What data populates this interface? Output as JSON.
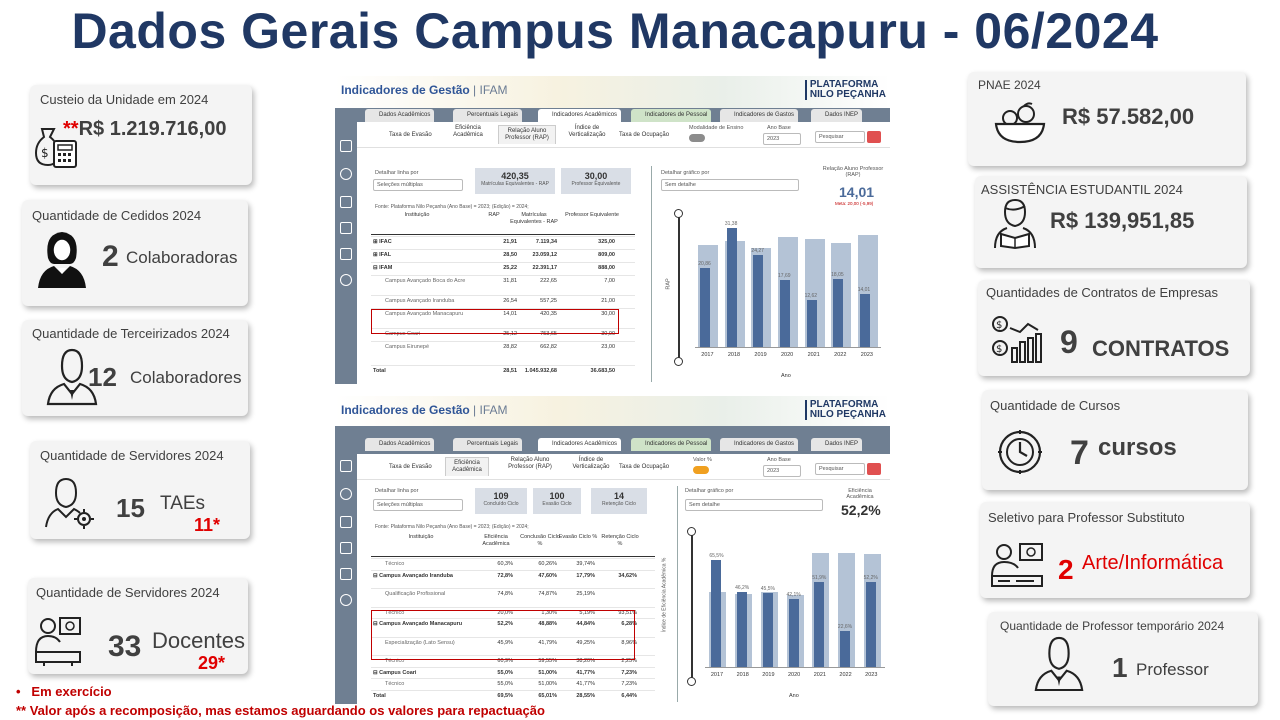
{
  "title": "Dados Gerais Campus Manacapuru - 06/2024",
  "left_cards": {
    "custeio": {
      "label": "Custeio da Unidade em 2024",
      "value_prefix": "**",
      "value": "R$ 1.219.716,00"
    },
    "cedidos": {
      "label": "Quantidade de Cedidos 2024",
      "number": "2",
      "unit": "Colaboradoras"
    },
    "terceirizados": {
      "label": "Quantidade de Terceirizados 2024",
      "number": "12",
      "unit": "Colaboradores"
    },
    "servidores_tae": {
      "label": "Quantidade de Servidores 2024",
      "number": "15",
      "unit": "TAEs",
      "note": "11*"
    },
    "servidores_doc": {
      "label": "Quantidade de Servidores 2024",
      "number": "33",
      "unit": "Docentes",
      "note": "29*"
    }
  },
  "right_cards": {
    "pnae": {
      "label": "PNAE 2024",
      "value": "R$ 57.582,00"
    },
    "assistencia": {
      "label": "ASSISTÊNCIA  ESTUDANTIL  2024",
      "value": "R$ 139,951,85"
    },
    "contratos": {
      "label": "Quantidades de Contratos de Empresas",
      "number": "9",
      "unit": "CONTRATOS"
    },
    "cursos": {
      "label": "Quantidade  de Cursos",
      "number": "7",
      "unit": "cursos"
    },
    "seletivo": {
      "label": "Seletivo para Professor Substituto",
      "number": "2",
      "unit": "Arte/Informática"
    },
    "temporario": {
      "label": "Quantidade de Professor temporário 2024",
      "number": "1",
      "unit": "Professor"
    }
  },
  "footnotes": {
    "n1_bullet": "•",
    "n1": "Em exercício",
    "n2": "** Valor após a recomposição, mas estamos aguardando os valores para repactuação"
  },
  "dashboard_common": {
    "title": "Indicadores de Gestão",
    "sep": " | ",
    "org": "IFAM",
    "logo_line1": "PLATAFORMA",
    "logo_line2": "NILO PEÇANHA",
    "tabs": [
      "Dados Acadêmicos",
      "Percentuais Legais",
      "Indicadores Acadêmicos",
      "Indicadores de Pessoal",
      "Indicadores de Gastos",
      "Dados INEP"
    ],
    "ano_base_label": "Ano Base",
    "ano_base_value": "2023",
    "search_placeholder": "Pesquisar",
    "detail_label": "Detalhar linha por",
    "detail_value": "Seleções múltiplas",
    "chart_detail_label": "Detalhar gráfico por",
    "chart_detail_value": "Sem detalhe"
  },
  "dash1": {
    "subtabs": [
      "Taxa de Evasão",
      "Eficiência Acadêmica",
      "Relação Aluno Professor (RAP)",
      "Índice de Verticalização",
      "Taxa de Ocupação"
    ],
    "toggle_label": "Modalidade de Ensino",
    "kpi1": {
      "value": "420,35",
      "caption": "Matrículas Equivalentes - RAP"
    },
    "kpi2": {
      "value": "30,00",
      "caption": "Professor Equivalente"
    },
    "fonte": "Fonte: Plataforma Nilo Peçanha (Ano Base) = 2023; (Edição) = 2024;",
    "columns": [
      "Instituição",
      "RAP",
      "Matrículas Equivalentes - RAP",
      "Professor Equivalente"
    ],
    "rows": [
      [
        "⊞ IFAC",
        "21,91",
        "7.119,34",
        "325,00"
      ],
      [
        "⊞ IFAL",
        "28,50",
        "23.059,12",
        "809,00"
      ],
      [
        "⊟ IFAM",
        "25,22",
        "22.391,17",
        "888,00"
      ],
      [
        "Campus Avançado Boca do Acre",
        "31,81",
        "222,65",
        "7,00"
      ],
      [
        "Campus Avançado Iranduba",
        "26,54",
        "557,25",
        "21,00"
      ],
      [
        "Campus Avançado Manacapuru",
        "14,01",
        "420,35",
        "30,00"
      ],
      [
        "Campus Coari",
        "25,12",
        "753,65",
        "30,00"
      ],
      [
        "Campus Eirunepé",
        "28,82",
        "662,82",
        "23,00"
      ],
      [
        "Total",
        "28,51",
        "1.045.932,68",
        "36.683,50"
      ]
    ],
    "side_kpi_label": "Relação Aluno Professor (RAP)",
    "side_kpi_value": "14,01",
    "side_kpi_meta": "Meta: 20,00 (-5,99)",
    "y_label": "RAP",
    "x_label": "Ano"
  },
  "dash2": {
    "subtabs": [
      "Taxa de Evasão",
      "Eficiência Acadêmica",
      "Relação Aluno Professor (RAP)",
      "Índice de Verticalização",
      "Taxa de Ocupação"
    ],
    "toggle_label": "Valor %",
    "kpi1": {
      "value": "109",
      "caption": "Concluído Ciclo"
    },
    "kpi2": {
      "value": "100",
      "caption": "Evasão Ciclo"
    },
    "kpi3": {
      "value": "14",
      "caption": "Retenção Ciclo"
    },
    "fonte": "Fonte: Plataforma Nilo Peçanha (Ano Base) = 2023; (Edição) = 2024;",
    "columns": [
      "Instituição",
      "Eficiência Acadêmica",
      "Conclusão Ciclo %",
      "Evasão Ciclo %",
      "Retenção Ciclo %"
    ],
    "rows": [
      [
        "Técnico",
        "60,3%",
        "60,26%",
        "39,74%",
        ""
      ],
      [
        "⊟ Campus Avançado Iranduba",
        "72,8%",
        "47,60%",
        "17,79%",
        "34,62%"
      ],
      [
        "Qualificação Profissional",
        "74,8%",
        "74,87%",
        "25,19%",
        ""
      ],
      [
        "Técnico",
        "20,0%",
        "1,30%",
        "5,19%",
        "93,51%"
      ],
      [
        "⊟ Campus Avançado Manacapuru",
        "52,2%",
        "48,88%",
        "44,84%",
        "6,28%"
      ],
      [
        "Especialização (Lato Sensu)",
        "45,9%",
        "41,79%",
        "49,25%",
        "8,96%"
      ],
      [
        "Técnico",
        "60,9%",
        "59,55%",
        "38,20%",
        "2,25%"
      ],
      [
        "⊟ Campus Coari",
        "55,0%",
        "51,00%",
        "41,77%",
        "7,23%"
      ],
      [
        "Técnico",
        "55,0%",
        "51,00%",
        "41,77%",
        "7,23%"
      ],
      [
        "Total",
        "69,5%",
        "65,01%",
        "28,55%",
        "6,44%"
      ]
    ],
    "side_kpi_label": "Eficiência Acadêmica",
    "side_kpi_value": "52,2%",
    "y_label": "Índice de Eficiência Acadêmica %",
    "x_label": "Ano"
  },
  "chart_data": [
    {
      "type": "bar",
      "title": "",
      "xlabel": "Ano",
      "ylabel": "RAP",
      "categories": [
        "2017",
        "2018",
        "2019",
        "2020",
        "2021",
        "2022",
        "2023"
      ],
      "series": [
        {
          "name": "",
          "values": [
            20.86,
            31.38,
            24.27,
            17.69,
            12.62,
            18.05,
            14.01
          ]
        },
        {
          "name": "",
          "values": [
            27.0,
            28.0,
            26.0,
            29.0,
            28.5,
            27.5,
            29.5
          ]
        }
      ],
      "ylim": [
        0,
        35
      ]
    },
    {
      "type": "bar",
      "title": "",
      "xlabel": "Ano",
      "ylabel": "Índice de Eficiência Acadêmica %",
      "categories": [
        "2017",
        "2018",
        "2019",
        "2020",
        "2021",
        "2022",
        "2023"
      ],
      "series": [
        {
          "name": "",
          "values": [
            65.5,
            46.2,
            45.5,
            42.1,
            51.9,
            22.6,
            52.2
          ]
        },
        {
          "name": "",
          "values": [
            46.0,
            45.0,
            46.0,
            44.0,
            70.0,
            70.0,
            69.0
          ]
        }
      ],
      "ylim": [
        0,
        80
      ]
    }
  ],
  "colors": {
    "title": "#203864",
    "bar_dark": "#4a6a9a",
    "bar_light": "#b4c3d6",
    "highlight": "#c00000"
  }
}
